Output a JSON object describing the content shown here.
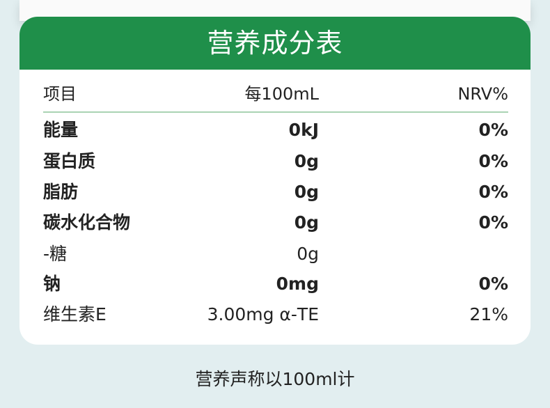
{
  "title": "营养成分表",
  "header": {
    "item": "项目",
    "per": "每100mL",
    "nrv": "NRV%"
  },
  "rows": [
    {
      "name": "能量",
      "value": "0kJ",
      "nrv": "0%",
      "bold": true
    },
    {
      "name": "蛋白质",
      "value": "0g",
      "nrv": "0%",
      "bold": true
    },
    {
      "name": "脂肪",
      "value": "0g",
      "nrv": "0%",
      "bold": true
    },
    {
      "name": "碳水化合物",
      "value": "0g",
      "nrv": "0%",
      "bold": true
    },
    {
      "name": "-糖",
      "value": "0g",
      "nrv": "",
      "bold": false
    },
    {
      "name": "钠",
      "value": "0mg",
      "nrv": "0%",
      "bold": true
    },
    {
      "name": "维生素E",
      "value": "3.00mg α-TE",
      "nrv": "21%",
      "bold": false
    }
  ],
  "footnote": "营养声称以100ml计",
  "colors": {
    "header_green": "#1f8f4a",
    "background": "#e2eef0",
    "divider": "#a9d3b3"
  }
}
